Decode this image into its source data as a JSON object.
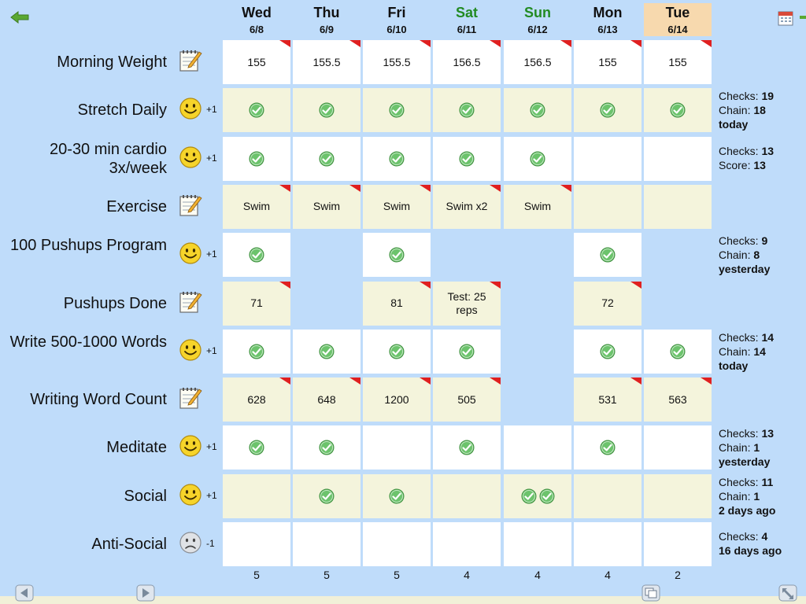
{
  "colors": {
    "background": "#bfdcfa",
    "cell_white": "#ffffff",
    "cell_cream": "#f4f4dc",
    "today_header": "#f7d9ae",
    "weekend_text": "#228b22",
    "flag": "#e02020",
    "check": "#5cb85c"
  },
  "days": [
    {
      "name": "Wed",
      "date": "6/8",
      "weekend": false,
      "today": false
    },
    {
      "name": "Thu",
      "date": "6/9",
      "weekend": false,
      "today": false
    },
    {
      "name": "Fri",
      "date": "6/10",
      "weekend": false,
      "today": false
    },
    {
      "name": "Sat",
      "date": "6/11",
      "weekend": true,
      "today": false
    },
    {
      "name": "Sun",
      "date": "6/12",
      "weekend": true,
      "today": false
    },
    {
      "name": "Mon",
      "date": "6/13",
      "weekend": false,
      "today": false
    },
    {
      "name": "Tue",
      "date": "6/14",
      "weekend": false,
      "today": true
    }
  ],
  "habits": [
    {
      "label": "Morning Weight",
      "icon": "notepad-icon",
      "score": "",
      "type": "note",
      "cells": [
        {
          "bg": "white",
          "text": "155",
          "flag": true
        },
        {
          "bg": "white",
          "text": "155.5",
          "flag": true
        },
        {
          "bg": "white",
          "text": "155.5",
          "flag": true
        },
        {
          "bg": "white",
          "text": "156.5",
          "flag": true
        },
        {
          "bg": "white",
          "text": "156.5",
          "flag": true
        },
        {
          "bg": "white",
          "text": "155",
          "flag": true
        },
        {
          "bg": "white",
          "text": "155",
          "flag": true
        }
      ],
      "stats": []
    },
    {
      "label": "Stretch Daily",
      "icon": "smiley-icon",
      "score": "+1",
      "type": "check",
      "cells": [
        {
          "bg": "cream",
          "checks": 1
        },
        {
          "bg": "cream",
          "checks": 1
        },
        {
          "bg": "cream",
          "checks": 1
        },
        {
          "bg": "cream",
          "checks": 1
        },
        {
          "bg": "cream",
          "checks": 1
        },
        {
          "bg": "cream",
          "checks": 1
        },
        {
          "bg": "cream",
          "checks": 1
        }
      ],
      "stats": [
        {
          "k": "Checks: ",
          "v": "19"
        },
        {
          "k": "Chain: ",
          "v": "18"
        },
        {
          "k": "",
          "v": "today"
        }
      ]
    },
    {
      "label": "20-30 min cardio 3x/week",
      "icon": "smiley-icon",
      "score": "+1",
      "type": "check",
      "cells": [
        {
          "bg": "white",
          "checks": 1
        },
        {
          "bg": "white",
          "checks": 1
        },
        {
          "bg": "white",
          "checks": 1
        },
        {
          "bg": "white",
          "checks": 1
        },
        {
          "bg": "white",
          "checks": 1
        },
        {
          "bg": "white",
          "checks": 0
        },
        {
          "bg": "white",
          "checks": 0
        }
      ],
      "stats": [
        {
          "k": "Checks: ",
          "v": "13"
        },
        {
          "k": "Score: ",
          "v": "13"
        }
      ]
    },
    {
      "label": "Exercise",
      "icon": "notepad-icon",
      "score": "",
      "type": "note",
      "cells": [
        {
          "bg": "cream",
          "text": "Swim",
          "flag": true
        },
        {
          "bg": "cream",
          "text": "Swim",
          "flag": true
        },
        {
          "bg": "cream",
          "text": "Swim",
          "flag": true
        },
        {
          "bg": "cream",
          "text": "Swim x2",
          "flag": true
        },
        {
          "bg": "cream",
          "text": "Swim",
          "flag": true
        },
        {
          "bg": "cream",
          "text": "",
          "flag": false
        },
        {
          "bg": "cream",
          "text": "",
          "flag": false
        }
      ],
      "stats": []
    },
    {
      "label": "100 Pushups Program",
      "icon": "smiley-icon",
      "score": "+1",
      "type": "check",
      "cells": [
        {
          "bg": "white",
          "checks": 1
        },
        {
          "bg": "none",
          "checks": 0
        },
        {
          "bg": "white",
          "checks": 1
        },
        {
          "bg": "none",
          "checks": 0
        },
        {
          "bg": "none",
          "checks": 0
        },
        {
          "bg": "white",
          "checks": 1
        },
        {
          "bg": "none",
          "checks": 0
        }
      ],
      "stats": [
        {
          "k": "Checks: ",
          "v": "9"
        },
        {
          "k": "Chain: ",
          "v": "8"
        },
        {
          "k": "",
          "v": "yesterday"
        }
      ]
    },
    {
      "label": "Pushups Done",
      "icon": "notepad-icon",
      "score": "",
      "type": "note",
      "cells": [
        {
          "bg": "cream",
          "text": "71",
          "flag": true
        },
        {
          "bg": "none",
          "text": "",
          "flag": false
        },
        {
          "bg": "cream",
          "text": "81",
          "flag": true
        },
        {
          "bg": "cream",
          "text": "Test: 25 reps",
          "flag": true
        },
        {
          "bg": "none",
          "text": "",
          "flag": false
        },
        {
          "bg": "cream",
          "text": "72",
          "flag": true
        },
        {
          "bg": "none",
          "text": "",
          "flag": false
        }
      ],
      "stats": []
    },
    {
      "label": "Write 500-1000 Words",
      "icon": "smiley-icon",
      "score": "+1",
      "type": "check",
      "cells": [
        {
          "bg": "white",
          "checks": 1
        },
        {
          "bg": "white",
          "checks": 1
        },
        {
          "bg": "white",
          "checks": 1
        },
        {
          "bg": "white",
          "checks": 1
        },
        {
          "bg": "none",
          "checks": 0
        },
        {
          "bg": "white",
          "checks": 1
        },
        {
          "bg": "white",
          "checks": 1
        }
      ],
      "stats": [
        {
          "k": "Checks: ",
          "v": "14"
        },
        {
          "k": "Chain: ",
          "v": "14"
        },
        {
          "k": "",
          "v": "today"
        }
      ]
    },
    {
      "label": "Writing Word Count",
      "icon": "notepad-icon",
      "score": "",
      "type": "note",
      "cells": [
        {
          "bg": "cream",
          "text": "628",
          "flag": true
        },
        {
          "bg": "cream",
          "text": "648",
          "flag": true
        },
        {
          "bg": "cream",
          "text": "1200",
          "flag": true
        },
        {
          "bg": "cream",
          "text": "505",
          "flag": true
        },
        {
          "bg": "none",
          "text": "",
          "flag": false
        },
        {
          "bg": "cream",
          "text": "531",
          "flag": true
        },
        {
          "bg": "cream",
          "text": "563",
          "flag": true
        }
      ],
      "stats": []
    },
    {
      "label": "Meditate",
      "icon": "smiley-icon",
      "score": "+1",
      "type": "check",
      "cells": [
        {
          "bg": "white",
          "checks": 1
        },
        {
          "bg": "white",
          "checks": 1
        },
        {
          "bg": "white",
          "checks": 0
        },
        {
          "bg": "white",
          "checks": 1
        },
        {
          "bg": "white",
          "checks": 0
        },
        {
          "bg": "white",
          "checks": 1
        },
        {
          "bg": "white",
          "checks": 0
        }
      ],
      "stats": [
        {
          "k": "Checks: ",
          "v": "13"
        },
        {
          "k": "Chain: ",
          "v": "1"
        },
        {
          "k": "",
          "v": "yesterday"
        }
      ]
    },
    {
      "label": "Social",
      "icon": "smiley-icon",
      "score": "+1",
      "type": "check",
      "cells": [
        {
          "bg": "cream",
          "checks": 0
        },
        {
          "bg": "cream",
          "checks": 1
        },
        {
          "bg": "cream",
          "checks": 1
        },
        {
          "bg": "cream",
          "checks": 0
        },
        {
          "bg": "cream",
          "checks": 2
        },
        {
          "bg": "cream",
          "checks": 0
        },
        {
          "bg": "cream",
          "checks": 0
        }
      ],
      "stats": [
        {
          "k": "Checks: ",
          "v": "11"
        },
        {
          "k": "Chain: ",
          "v": "1"
        },
        {
          "k": "",
          "v": "2 days ago"
        }
      ]
    },
    {
      "label": "Anti-Social",
      "icon": "frown-icon",
      "score": "-1",
      "type": "check",
      "cells": [
        {
          "bg": "white",
          "checks": 0
        },
        {
          "bg": "white",
          "checks": 0
        },
        {
          "bg": "white",
          "checks": 0
        },
        {
          "bg": "white",
          "checks": 0
        },
        {
          "bg": "white",
          "checks": 0
        },
        {
          "bg": "white",
          "checks": 0
        },
        {
          "bg": "white",
          "checks": 0
        }
      ],
      "stats": [
        {
          "k": "Checks: ",
          "v": "4"
        },
        {
          "k": "",
          "v": "16 days ago"
        }
      ]
    }
  ],
  "daily_counts": [
    "5",
    "5",
    "5",
    "4",
    "4",
    "4",
    "2"
  ],
  "icons": {
    "back": "back-arrow-icon",
    "calendar": "calendar-icon",
    "prev": "prev-page-icon",
    "next": "next-page-icon",
    "copy": "copy-icon",
    "resize": "resize-icon"
  }
}
